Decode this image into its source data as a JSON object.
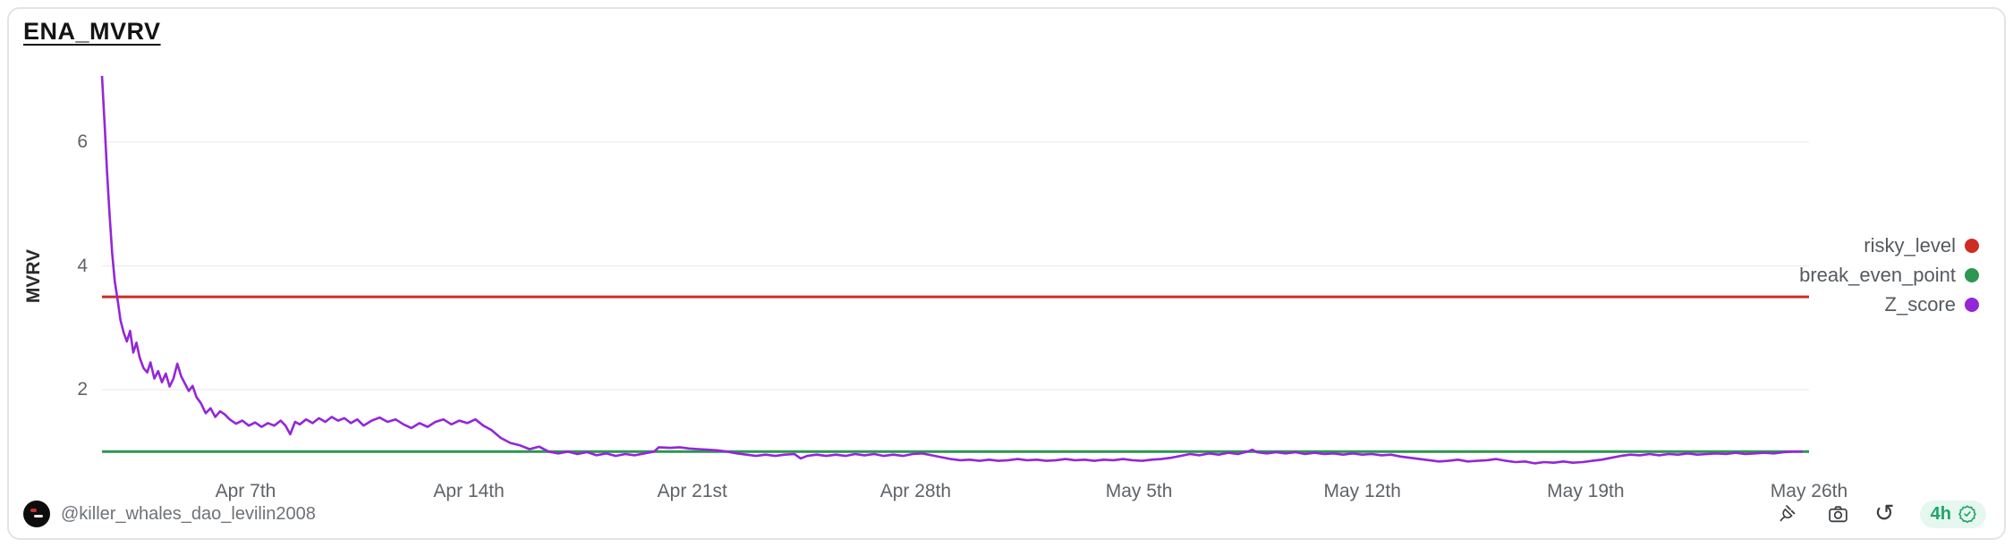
{
  "card": {
    "title": "ENA_MVRV"
  },
  "chart_data": {
    "type": "line",
    "title": "ENA_MVRV",
    "xlabel": "",
    "ylabel": "MVRV",
    "grid": "horizontal-only",
    "legend_position": "right-middle",
    "ylim": [
      0.6,
      7.3
    ],
    "y_ticks": [
      2,
      4,
      6
    ],
    "x_domain_days": [
      0,
      53.5
    ],
    "x_start_note": "day 0 ≈ Apr 2nd",
    "x_ticks": [
      {
        "label": "Apr 7th",
        "day": 4.5
      },
      {
        "label": "Apr 14th",
        "day": 11.5
      },
      {
        "label": "Apr 21st",
        "day": 18.5
      },
      {
        "label": "Apr 28th",
        "day": 25.5
      },
      {
        "label": "May 5th",
        "day": 32.5
      },
      {
        "label": "May 12th",
        "day": 39.5
      },
      {
        "label": "May 19th",
        "day": 46.5
      },
      {
        "label": "May 26th",
        "day": 53.5
      }
    ],
    "series": [
      {
        "name": "risky_level",
        "type": "hline",
        "value": 3.5,
        "color": "#cf2c24"
      },
      {
        "name": "break_even_point",
        "type": "hline",
        "value": 1.0,
        "color": "#2d9650"
      },
      {
        "name": "Z_score",
        "type": "line",
        "color": "#9326d9",
        "points": [
          [
            0,
            7.07
          ],
          [
            0.08,
            6.3
          ],
          [
            0.16,
            5.5
          ],
          [
            0.24,
            4.8
          ],
          [
            0.32,
            4.2
          ],
          [
            0.4,
            3.75
          ],
          [
            0.5,
            3.42
          ],
          [
            0.58,
            3.12
          ],
          [
            0.68,
            2.92
          ],
          [
            0.78,
            2.78
          ],
          [
            0.88,
            2.95
          ],
          [
            0.98,
            2.6
          ],
          [
            1.08,
            2.76
          ],
          [
            1.18,
            2.52
          ],
          [
            1.3,
            2.35
          ],
          [
            1.42,
            2.28
          ],
          [
            1.52,
            2.44
          ],
          [
            1.64,
            2.18
          ],
          [
            1.76,
            2.3
          ],
          [
            1.88,
            2.12
          ],
          [
            2.0,
            2.26
          ],
          [
            2.12,
            2.05
          ],
          [
            2.24,
            2.18
          ],
          [
            2.36,
            2.42
          ],
          [
            2.48,
            2.22
          ],
          [
            2.6,
            2.1
          ],
          [
            2.72,
            1.98
          ],
          [
            2.84,
            2.06
          ],
          [
            2.96,
            1.88
          ],
          [
            3.1,
            1.78
          ],
          [
            3.25,
            1.62
          ],
          [
            3.4,
            1.7
          ],
          [
            3.55,
            1.56
          ],
          [
            3.7,
            1.65
          ],
          [
            3.85,
            1.6
          ],
          [
            4.0,
            1.52
          ],
          [
            4.2,
            1.45
          ],
          [
            4.4,
            1.5
          ],
          [
            4.6,
            1.42
          ],
          [
            4.8,
            1.47
          ],
          [
            5.0,
            1.4
          ],
          [
            5.2,
            1.46
          ],
          [
            5.4,
            1.42
          ],
          [
            5.6,
            1.5
          ],
          [
            5.75,
            1.42
          ],
          [
            5.9,
            1.28
          ],
          [
            6.05,
            1.48
          ],
          [
            6.2,
            1.44
          ],
          [
            6.4,
            1.52
          ],
          [
            6.6,
            1.46
          ],
          [
            6.8,
            1.54
          ],
          [
            7.0,
            1.48
          ],
          [
            7.2,
            1.56
          ],
          [
            7.4,
            1.5
          ],
          [
            7.6,
            1.54
          ],
          [
            7.8,
            1.46
          ],
          [
            8.0,
            1.52
          ],
          [
            8.2,
            1.42
          ],
          [
            8.45,
            1.5
          ],
          [
            8.7,
            1.55
          ],
          [
            8.95,
            1.48
          ],
          [
            9.2,
            1.52
          ],
          [
            9.45,
            1.44
          ],
          [
            9.7,
            1.38
          ],
          [
            9.95,
            1.46
          ],
          [
            10.2,
            1.4
          ],
          [
            10.45,
            1.48
          ],
          [
            10.7,
            1.52
          ],
          [
            10.95,
            1.44
          ],
          [
            11.2,
            1.5
          ],
          [
            11.45,
            1.46
          ],
          [
            11.7,
            1.52
          ],
          [
            11.95,
            1.42
          ],
          [
            12.2,
            1.35
          ],
          [
            12.5,
            1.22
          ],
          [
            12.8,
            1.14
          ],
          [
            13.1,
            1.1
          ],
          [
            13.4,
            1.04
          ],
          [
            13.7,
            1.08
          ],
          [
            14.0,
            1.0
          ],
          [
            14.3,
            0.97
          ],
          [
            14.6,
            1.0
          ],
          [
            14.9,
            0.96
          ],
          [
            15.2,
            0.99
          ],
          [
            15.5,
            0.94
          ],
          [
            15.8,
            0.97
          ],
          [
            16.1,
            0.93
          ],
          [
            16.4,
            0.96
          ],
          [
            16.7,
            0.94
          ],
          [
            17.0,
            0.97
          ],
          [
            17.3,
            1.0
          ],
          [
            17.45,
            1.07
          ],
          [
            17.8,
            1.06
          ],
          [
            18.1,
            1.07
          ],
          [
            18.4,
            1.05
          ],
          [
            18.7,
            1.04
          ],
          [
            19.0,
            1.03
          ],
          [
            19.3,
            1.02
          ],
          [
            19.6,
            1.0
          ],
          [
            19.9,
            0.97
          ],
          [
            20.2,
            0.95
          ],
          [
            20.5,
            0.93
          ],
          [
            20.8,
            0.95
          ],
          [
            21.1,
            0.93
          ],
          [
            21.4,
            0.95
          ],
          [
            21.7,
            0.96
          ],
          [
            21.9,
            0.89
          ],
          [
            22.1,
            0.93
          ],
          [
            22.4,
            0.95
          ],
          [
            22.7,
            0.93
          ],
          [
            23.0,
            0.95
          ],
          [
            23.3,
            0.93
          ],
          [
            23.6,
            0.96
          ],
          [
            23.9,
            0.94
          ],
          [
            24.2,
            0.96
          ],
          [
            24.5,
            0.93
          ],
          [
            24.8,
            0.95
          ],
          [
            25.1,
            0.93
          ],
          [
            25.4,
            0.96
          ],
          [
            25.7,
            0.97
          ],
          [
            26.0,
            0.94
          ],
          [
            26.3,
            0.91
          ],
          [
            26.6,
            0.88
          ],
          [
            26.9,
            0.86
          ],
          [
            27.2,
            0.87
          ],
          [
            27.5,
            0.85
          ],
          [
            27.8,
            0.87
          ],
          [
            28.1,
            0.85
          ],
          [
            28.4,
            0.86
          ],
          [
            28.7,
            0.88
          ],
          [
            29.0,
            0.86
          ],
          [
            29.3,
            0.87
          ],
          [
            29.6,
            0.85
          ],
          [
            29.9,
            0.86
          ],
          [
            30.2,
            0.88
          ],
          [
            30.5,
            0.86
          ],
          [
            30.8,
            0.87
          ],
          [
            31.1,
            0.85
          ],
          [
            31.4,
            0.87
          ],
          [
            31.7,
            0.86
          ],
          [
            32.0,
            0.88
          ],
          [
            32.3,
            0.86
          ],
          [
            32.6,
            0.85
          ],
          [
            32.9,
            0.87
          ],
          [
            33.2,
            0.88
          ],
          [
            33.5,
            0.9
          ],
          [
            33.8,
            0.93
          ],
          [
            34.1,
            0.96
          ],
          [
            34.4,
            0.94
          ],
          [
            34.7,
            0.97
          ],
          [
            35.0,
            0.95
          ],
          [
            35.3,
            0.98
          ],
          [
            35.6,
            0.96
          ],
          [
            35.9,
            1.0
          ],
          [
            36.05,
            1.03
          ],
          [
            36.2,
            0.99
          ],
          [
            36.5,
            0.97
          ],
          [
            36.8,
            0.99
          ],
          [
            37.1,
            0.97
          ],
          [
            37.4,
            0.99
          ],
          [
            37.7,
            0.96
          ],
          [
            38.0,
            0.98
          ],
          [
            38.3,
            0.96
          ],
          [
            38.6,
            0.97
          ],
          [
            38.9,
            0.95
          ],
          [
            39.2,
            0.97
          ],
          [
            39.5,
            0.95
          ],
          [
            39.8,
            0.96
          ],
          [
            40.1,
            0.94
          ],
          [
            40.4,
            0.95
          ],
          [
            40.7,
            0.92
          ],
          [
            41.0,
            0.9
          ],
          [
            41.3,
            0.88
          ],
          [
            41.6,
            0.86
          ],
          [
            41.9,
            0.84
          ],
          [
            42.2,
            0.85
          ],
          [
            42.5,
            0.87
          ],
          [
            42.8,
            0.84
          ],
          [
            43.1,
            0.85
          ],
          [
            43.4,
            0.86
          ],
          [
            43.7,
            0.88
          ],
          [
            44.0,
            0.85
          ],
          [
            44.3,
            0.83
          ],
          [
            44.6,
            0.84
          ],
          [
            44.9,
            0.81
          ],
          [
            45.2,
            0.83
          ],
          [
            45.5,
            0.82
          ],
          [
            45.8,
            0.84
          ],
          [
            46.1,
            0.82
          ],
          [
            46.4,
            0.83
          ],
          [
            46.7,
            0.85
          ],
          [
            47.0,
            0.87
          ],
          [
            47.3,
            0.9
          ],
          [
            47.6,
            0.93
          ],
          [
            47.9,
            0.95
          ],
          [
            48.2,
            0.94
          ],
          [
            48.5,
            0.96
          ],
          [
            48.8,
            0.94
          ],
          [
            49.1,
            0.96
          ],
          [
            49.4,
            0.95
          ],
          [
            49.7,
            0.97
          ],
          [
            50.0,
            0.95
          ],
          [
            50.3,
            0.96
          ],
          [
            50.6,
            0.97
          ],
          [
            50.9,
            0.96
          ],
          [
            51.2,
            0.98
          ],
          [
            51.5,
            0.96
          ],
          [
            51.8,
            0.97
          ],
          [
            52.1,
            0.98
          ],
          [
            52.4,
            0.97
          ],
          [
            52.7,
            0.99
          ],
          [
            53.0,
            1.0
          ],
          [
            53.3,
            1.0
          ]
        ]
      }
    ],
    "gridline_color": "#efefef"
  },
  "footer": {
    "handle": "@killer_whales_dao_levilin2008",
    "interval_label": "4h",
    "icon_names": [
      "killer-whales-logo",
      "plug-icon",
      "camera-icon",
      "undo-icon",
      "verified-badge-icon"
    ]
  },
  "colors": {
    "badge_bg": "#e6f7ef",
    "badge_green": "#1ea567",
    "axis_text": "#5f6368",
    "legend_text": "#555a5f"
  }
}
